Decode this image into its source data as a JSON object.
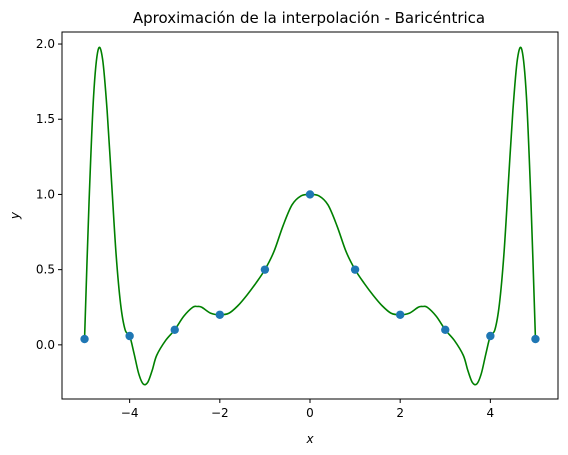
{
  "chart_data": {
    "type": "line",
    "title": "Aproximación de la interpolación - Baricéntrica",
    "xlabel": "x",
    "ylabel": "y",
    "xlim": [
      -5.5,
      5.5
    ],
    "ylim": [
      -0.36,
      2.08
    ],
    "grid": false,
    "x_ticks": [
      {
        "value": -4,
        "label": "−4"
      },
      {
        "value": -2,
        "label": "−2"
      },
      {
        "value": 0,
        "label": "0"
      },
      {
        "value": 2,
        "label": "2"
      },
      {
        "value": 4,
        "label": "4"
      }
    ],
    "y_ticks": [
      {
        "value": 0.0,
        "label": "0.0"
      },
      {
        "value": 0.5,
        "label": "0.5"
      },
      {
        "value": 1.0,
        "label": "1.0"
      },
      {
        "value": 1.5,
        "label": "1.5"
      },
      {
        "value": 2.0,
        "label": "2.0"
      }
    ],
    "series": [
      {
        "kind": "line",
        "color": "#008000",
        "x": [
          -5.0,
          -4.9,
          -4.8,
          -4.7,
          -4.6,
          -4.5,
          -4.4,
          -4.3,
          -4.2,
          -4.1,
          -4.0,
          -3.9,
          -3.8,
          -3.7,
          -3.6,
          -3.5,
          -3.4,
          -3.2,
          -3.0,
          -2.8,
          -2.6,
          -2.5,
          -2.4,
          -2.2,
          -2.0,
          -1.8,
          -1.6,
          -1.4,
          -1.2,
          -1.0,
          -0.8,
          -0.6,
          -0.4,
          -0.2,
          0.0,
          0.2,
          0.4,
          0.6,
          0.8,
          1.0,
          1.2,
          1.4,
          1.6,
          1.8,
          2.0,
          2.2,
          2.4,
          2.5,
          2.6,
          2.8,
          3.0,
          3.2,
          3.4,
          3.5,
          3.6,
          3.7,
          3.8,
          3.9,
          4.0,
          4.1,
          4.2,
          4.3,
          4.4,
          4.5,
          4.6,
          4.7,
          4.8,
          4.9,
          5.0
        ],
        "y": [
          0.04,
          0.95,
          1.65,
          1.96,
          1.9,
          1.56,
          1.08,
          0.6,
          0.27,
          0.1,
          0.06,
          -0.06,
          -0.19,
          -0.26,
          -0.25,
          -0.17,
          -0.07,
          0.03,
          0.1,
          0.19,
          0.25,
          0.255,
          0.25,
          0.21,
          0.2,
          0.21,
          0.26,
          0.33,
          0.41,
          0.5,
          0.62,
          0.79,
          0.93,
          0.99,
          1.0,
          0.99,
          0.93,
          0.79,
          0.62,
          0.5,
          0.41,
          0.33,
          0.26,
          0.21,
          0.2,
          0.21,
          0.25,
          0.255,
          0.25,
          0.19,
          0.1,
          0.03,
          -0.07,
          -0.17,
          -0.25,
          -0.26,
          -0.19,
          -0.06,
          0.06,
          0.1,
          0.27,
          0.6,
          1.08,
          1.56,
          1.9,
          1.96,
          1.65,
          0.95,
          0.04
        ]
      },
      {
        "kind": "scatter",
        "color": "#1f77b4",
        "x": [
          -5,
          -4,
          -3,
          -2,
          -1,
          0,
          1,
          2,
          3,
          4,
          5
        ],
        "y": [
          0.0385,
          0.0588,
          0.1,
          0.2,
          0.5,
          1.0,
          0.5,
          0.2,
          0.1,
          0.0588,
          0.0385
        ]
      }
    ]
  }
}
